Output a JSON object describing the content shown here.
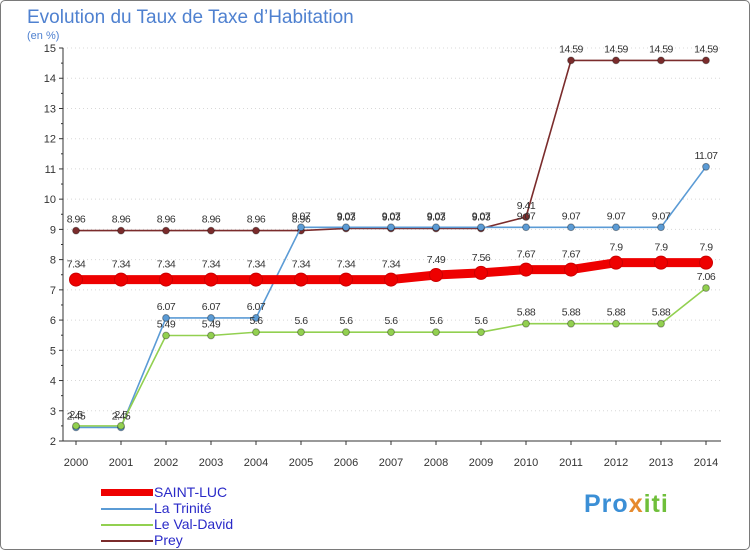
{
  "title": "Evolution du Taux de Taxe d’Habitation",
  "subtitle": "(en %)",
  "chart_data": {
    "type": "line",
    "title": "Evolution du Taux de Taxe d’Habitation",
    "subtitle": "(en %)",
    "xlabel": "",
    "ylabel": "",
    "x": [
      "2000",
      "2001",
      "2002",
      "2003",
      "2004",
      "2005",
      "2006",
      "2007",
      "2008",
      "2009",
      "2010",
      "2011",
      "2012",
      "2013",
      "2014"
    ],
    "ylim": [
      2,
      15
    ],
    "yticks": [
      "2",
      "3",
      "4",
      "5",
      "6",
      "7",
      "8",
      "9",
      "10",
      "11",
      "12",
      "13",
      "14",
      "15"
    ],
    "grid": "horizontal dotted, off",
    "legend_position": "bottom-left",
    "series": [
      {
        "name": "SAINT-LUC",
        "color": "#ee0000",
        "values": [
          7.34,
          7.34,
          7.34,
          7.34,
          7.34,
          7.34,
          7.34,
          7.34,
          7.49,
          7.56,
          7.67,
          7.67,
          7.9,
          7.9,
          7.9
        ],
        "labels": [
          "7.34",
          "7.34",
          "7.34",
          "7.34",
          "7.34",
          "7.34",
          "7.34",
          "7.34",
          "7.49",
          "7.56",
          "7.67",
          "7.67",
          "7.9",
          "7.9",
          "7.9"
        ]
      },
      {
        "name": "La Trinité",
        "color": "#5b9bd5",
        "values": [
          2.45,
          2.45,
          6.07,
          6.07,
          6.07,
          9.07,
          9.07,
          9.07,
          9.07,
          9.07,
          9.07,
          9.07,
          9.07,
          9.07,
          11.07
        ],
        "labels": [
          "2.45",
          "2.45",
          "6.07",
          "6.07",
          "6.07",
          "9.07",
          "9.07",
          "9.07",
          "9.07",
          "9.07",
          "9.07",
          "9.07",
          "9.07",
          "9.07",
          "11.07"
        ]
      },
      {
        "name": "Le Val-David",
        "color": "#92d050",
        "values": [
          2.5,
          2.5,
          5.49,
          5.49,
          5.6,
          5.6,
          5.6,
          5.6,
          5.6,
          5.6,
          5.88,
          5.88,
          5.88,
          5.88,
          7.06
        ],
        "labels": [
          "2.5",
          "2.5",
          "5.49",
          "5.49",
          "5.6",
          "5.6",
          "5.6",
          "5.6",
          "5.6",
          "5.6",
          "5.88",
          "5.88",
          "5.88",
          "5.88",
          "7.06"
        ]
      },
      {
        "name": "Prey",
        "color": "#7b2c2c",
        "values": [
          8.96,
          8.96,
          8.96,
          8.96,
          8.96,
          8.96,
          9.03,
          9.03,
          9.03,
          9.03,
          9.41,
          14.59,
          14.59,
          14.59,
          14.59
        ],
        "labels": [
          "8.96",
          "8.96",
          "8.96",
          "8.96",
          "8.96",
          "8.96",
          "9.03",
          "9.03",
          "9.03",
          "9.03",
          "9.41",
          "14.59",
          "14.59",
          "14.59",
          "14.59"
        ]
      }
    ]
  },
  "logo": {
    "part1": "Pro",
    "part2": "x",
    "part3": "iti"
  }
}
